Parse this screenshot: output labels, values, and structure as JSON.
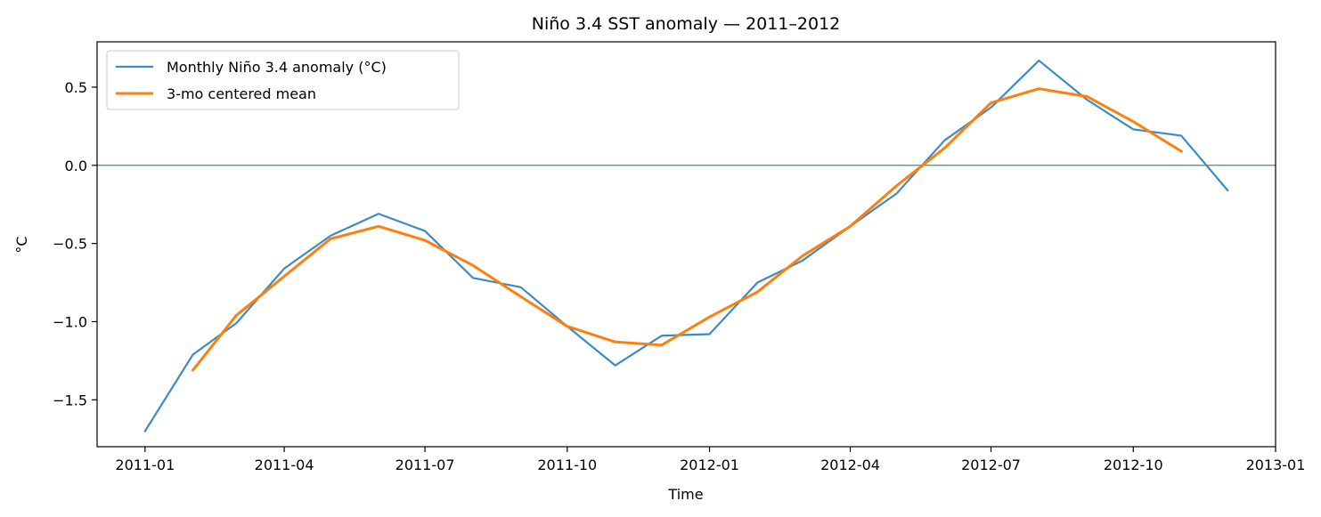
{
  "chart_data": {
    "type": "line",
    "title": "Niño 3.4 SST anomaly — 2011–2012",
    "xlabel": "Time",
    "ylabel": "°C",
    "x_axis_type": "date",
    "xlim": [
      "2010-12-01",
      "2013-01-01"
    ],
    "ylim": [
      -1.8,
      0.79
    ],
    "x_ticks": [
      "2011-01",
      "2011-04",
      "2011-07",
      "2011-10",
      "2012-01",
      "2012-04",
      "2012-07",
      "2012-10",
      "2013-01"
    ],
    "y_ticks": [
      0.5,
      0.0,
      -0.5,
      -1.0,
      -1.5
    ],
    "y_tick_labels": [
      "0.5",
      "0.0",
      "−0.5",
      "−1.0",
      "−1.5"
    ],
    "reference_line": {
      "y": 0.0,
      "color": "#3b86aa"
    },
    "grid": false,
    "legend_position": "top-left",
    "series": [
      {
        "name": "Monthly Niño 3.4 anomaly (°C)",
        "color": "#3c8cc3",
        "x": [
          "2011-01-01",
          "2011-02-01",
          "2011-03-01",
          "2011-04-01",
          "2011-05-01",
          "2011-06-01",
          "2011-07-01",
          "2011-08-01",
          "2011-09-01",
          "2011-10-01",
          "2011-11-01",
          "2011-12-01",
          "2012-01-01",
          "2012-02-01",
          "2012-03-01",
          "2012-04-01",
          "2012-05-01",
          "2012-06-01",
          "2012-07-01",
          "2012-08-01",
          "2012-09-01",
          "2012-10-01",
          "2012-11-01",
          "2012-12-01"
        ],
        "y": [
          -1.7,
          -1.21,
          -1.01,
          -0.66,
          -0.45,
          -0.31,
          -0.42,
          -0.72,
          -0.78,
          -1.03,
          -1.28,
          -1.09,
          -1.08,
          -0.75,
          -0.61,
          -0.39,
          -0.18,
          0.16,
          0.37,
          0.67,
          0.42,
          0.23,
          0.19,
          -0.16
        ]
      },
      {
        "name": "3-mo centered mean",
        "color": "#ff7f0e",
        "x": [
          "2011-02-01",
          "2011-03-01",
          "2011-04-01",
          "2011-05-01",
          "2011-06-01",
          "2011-07-01",
          "2011-08-01",
          "2011-09-01",
          "2011-10-01",
          "2011-11-01",
          "2011-12-01",
          "2012-01-01",
          "2012-02-01",
          "2012-03-01",
          "2012-04-01",
          "2012-05-01",
          "2012-06-01",
          "2012-07-01",
          "2012-08-01",
          "2012-09-01",
          "2012-10-01",
          "2012-11-01"
        ],
        "y": [
          -1.31,
          -0.96,
          -0.71,
          -0.47,
          -0.39,
          -0.48,
          -0.64,
          -0.84,
          -1.03,
          -1.13,
          -1.15,
          -0.97,
          -0.81,
          -0.58,
          -0.39,
          -0.13,
          0.11,
          0.4,
          0.49,
          0.44,
          0.28,
          0.09
        ]
      }
    ]
  }
}
